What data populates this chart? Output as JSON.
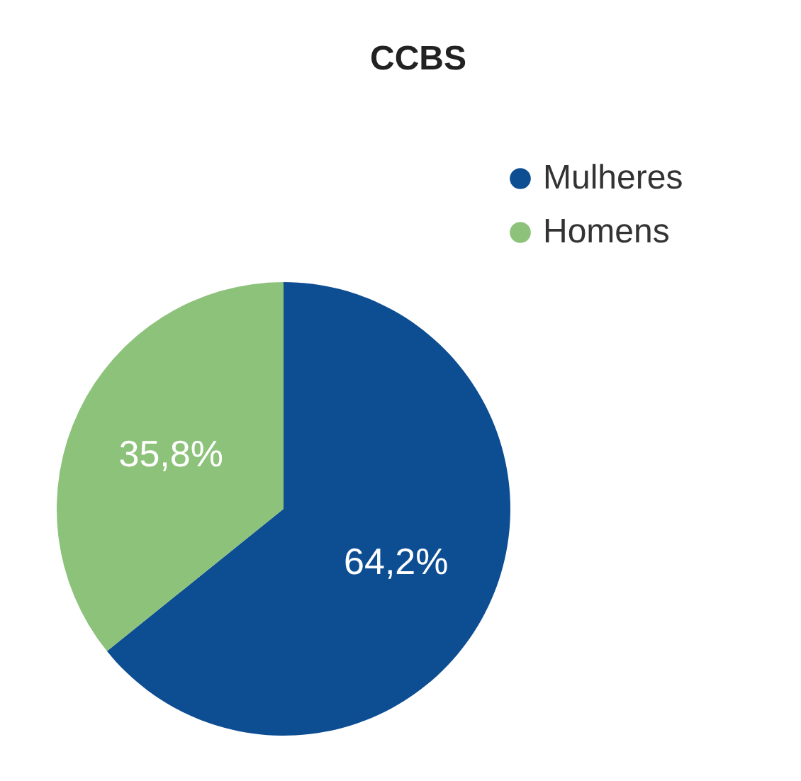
{
  "chart_data": {
    "type": "pie",
    "title": "CCBS",
    "categories": [
      "Mulheres",
      "Homens"
    ],
    "values": [
      64.2,
      35.8
    ],
    "colors": [
      "#0d4e93",
      "#8dc27b"
    ],
    "value_labels": [
      "64,2%",
      "35,8%"
    ],
    "legend": "top right"
  }
}
